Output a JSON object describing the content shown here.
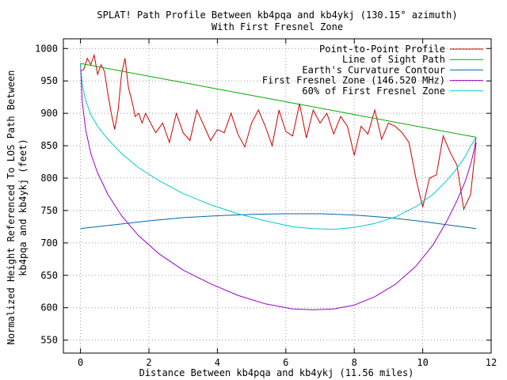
{
  "chart_data": {
    "type": "line",
    "title_line1": "SPLAT! Path Profile Between kb4pqa and kb4ykj (130.15° azimuth)",
    "title_line2": "With First Fresnel Zone",
    "xlabel": "Distance Between kb4pqa and kb4ykj (11.56 miles)",
    "ylabel_line1": "Normalized Height Referenced To LOS Path Between",
    "ylabel_line2": "kb4pqa and kb4ykj (feet)",
    "xlim": [
      -0.5,
      12
    ],
    "ylim": [
      530,
      1015
    ],
    "xticks": [
      0,
      2,
      4,
      6,
      8,
      10,
      12
    ],
    "yticks": [
      550,
      600,
      650,
      700,
      750,
      800,
      850,
      900,
      950,
      1000
    ],
    "grid": true,
    "legend_position": "top-right",
    "series": [
      {
        "name": "Point-to-Point Profile",
        "color": "#cc0000",
        "x": [
          0.0,
          0.1,
          0.2,
          0.3,
          0.4,
          0.5,
          0.6,
          0.7,
          0.8,
          0.9,
          1.0,
          1.1,
          1.2,
          1.3,
          1.4,
          1.5,
          1.6,
          1.7,
          1.8,
          1.9,
          2.0,
          2.2,
          2.4,
          2.6,
          2.8,
          3.0,
          3.2,
          3.4,
          3.6,
          3.8,
          4.0,
          4.2,
          4.4,
          4.6,
          4.8,
          5.0,
          5.2,
          5.4,
          5.6,
          5.8,
          6.0,
          6.2,
          6.4,
          6.6,
          6.8,
          7.0,
          7.2,
          7.4,
          7.6,
          7.8,
          8.0,
          8.2,
          8.4,
          8.6,
          8.8,
          9.0,
          9.2,
          9.4,
          9.6,
          9.8,
          10.0,
          10.2,
          10.4,
          10.6,
          10.8,
          11.0,
          11.2,
          11.4,
          11.56
        ],
        "y": [
          965,
          968,
          985,
          975,
          990,
          960,
          975,
          965,
          930,
          900,
          875,
          905,
          960,
          985,
          940,
          920,
          895,
          900,
          885,
          900,
          890,
          870,
          885,
          855,
          900,
          870,
          858,
          905,
          882,
          858,
          875,
          870,
          900,
          868,
          848,
          885,
          905,
          880,
          850,
          905,
          872,
          865,
          915,
          862,
          905,
          885,
          900,
          868,
          895,
          880,
          835,
          880,
          868,
          905,
          860,
          885,
          880,
          870,
          855,
          800,
          755,
          800,
          805,
          865,
          840,
          820,
          752,
          775,
          855
        ]
      },
      {
        "name": "Line of Sight Path",
        "color": "#00aa00",
        "x": [
          0.0,
          11.56
        ],
        "y": [
          977,
          863
        ]
      },
      {
        "name": "Earth's Curvature Contour",
        "color": "#0066aa",
        "x": [
          0.0,
          1.0,
          2.0,
          3.0,
          4.0,
          5.0,
          6.0,
          6.8,
          7.0,
          8.0,
          9.0,
          10.0,
          11.0,
          11.56
        ],
        "y": [
          722,
          728,
          734,
          739,
          742,
          744,
          745,
          745,
          745,
          743,
          739,
          733,
          726,
          722
        ]
      },
      {
        "name": "First Fresnel Zone (146.520 MHz)",
        "color": "#9900cc",
        "x": [
          0.0,
          0.05,
          0.15,
          0.3,
          0.5,
          0.8,
          1.2,
          1.7,
          2.3,
          3.0,
          3.8,
          4.6,
          5.4,
          6.2,
          6.8,
          7.4,
          8.0,
          8.6,
          9.2,
          9.8,
          10.3,
          10.7,
          11.0,
          11.25,
          11.42,
          11.52,
          11.56
        ],
        "y": [
          977,
          918,
          875,
          838,
          808,
          775,
          742,
          711,
          683,
          658,
          637,
          619,
          606,
          598,
          597,
          598,
          604,
          617,
          636,
          664,
          697,
          733,
          765,
          796,
          825,
          848,
          863
        ]
      },
      {
        "name": "60% of First Fresnel Zone",
        "color": "#00cccc",
        "x": [
          0.0,
          0.05,
          0.15,
          0.3,
          0.5,
          0.8,
          1.2,
          1.7,
          2.3,
          3.0,
          3.8,
          4.6,
          5.4,
          6.2,
          6.8,
          7.4,
          8.0,
          8.6,
          9.2,
          9.8,
          10.3,
          10.7,
          11.0,
          11.25,
          11.42,
          11.52,
          11.56
        ],
        "y": [
          977,
          945,
          920,
          898,
          880,
          860,
          838,
          816,
          796,
          776,
          759,
          745,
          734,
          725,
          722,
          721,
          724,
          730,
          740,
          756,
          775,
          796,
          815,
          834,
          851,
          860,
          863
        ]
      }
    ]
  }
}
